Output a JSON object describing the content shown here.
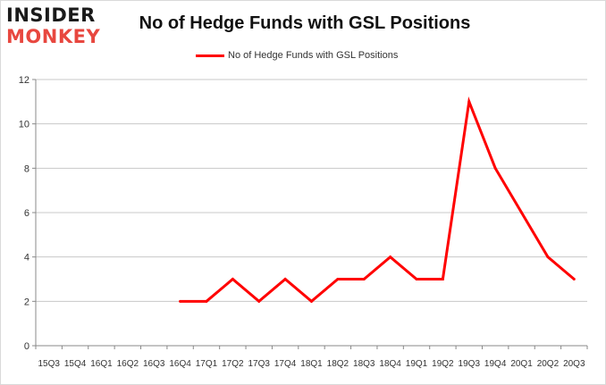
{
  "logo": {
    "line1": "INSIDER",
    "line2": "MONKEY"
  },
  "chart_data": {
    "type": "line",
    "title": "No of Hedge Funds with GSL Positions",
    "xlabel": "",
    "ylabel": "",
    "categories": [
      "15Q3",
      "15Q4",
      "16Q1",
      "16Q2",
      "16Q3",
      "16Q4",
      "17Q1",
      "17Q2",
      "17Q3",
      "17Q4",
      "18Q1",
      "18Q2",
      "18Q3",
      "18Q4",
      "19Q1",
      "19Q2",
      "19Q3",
      "19Q4",
      "20Q1",
      "20Q2",
      "20Q3"
    ],
    "series": [
      {
        "name": "No of Hedge Funds with GSL Positions",
        "values": [
          null,
          null,
          null,
          null,
          null,
          2,
          2,
          3,
          2,
          3,
          2,
          3,
          3,
          4,
          3,
          3,
          11,
          8,
          6,
          4,
          3
        ],
        "color": "#ff0000"
      }
    ],
    "ylim": [
      0,
      12
    ],
    "yticks": [
      0,
      2,
      4,
      6,
      8,
      10,
      12
    ],
    "grid": true,
    "legend": "top-center"
  }
}
